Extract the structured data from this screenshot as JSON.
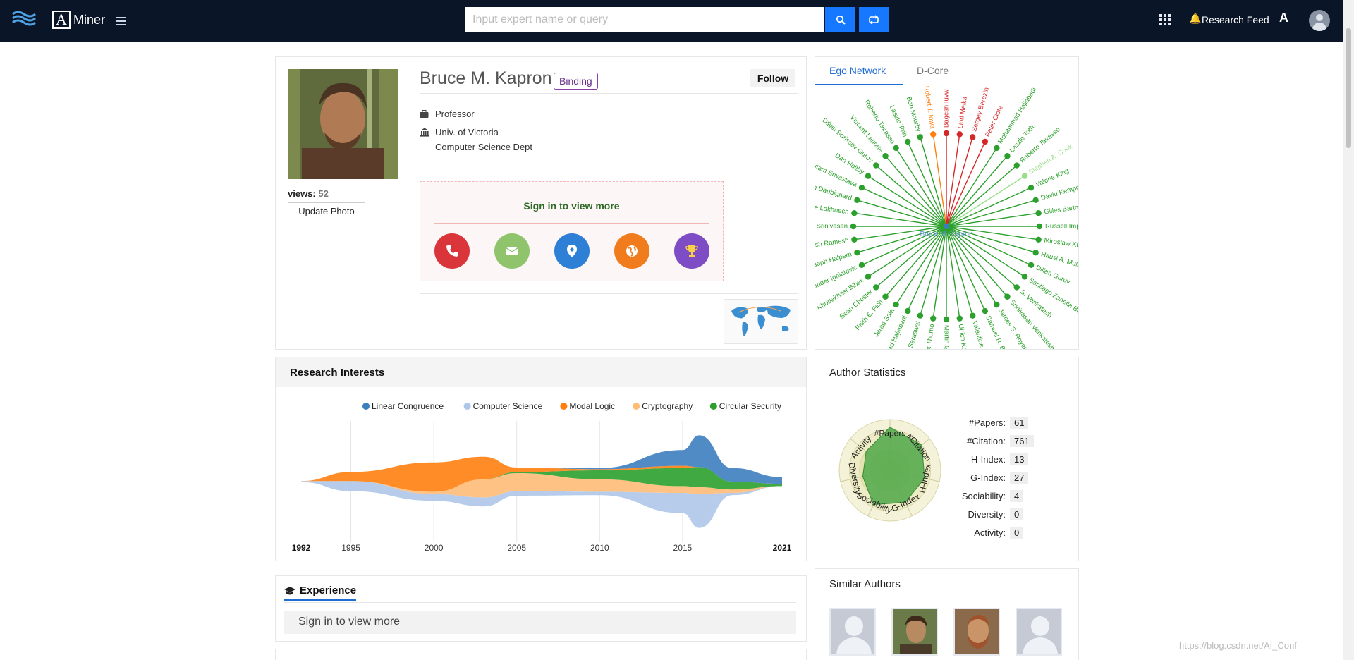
{
  "header": {
    "brand": "Miner",
    "brand_letter": "A",
    "search_placeholder": "Input expert name or query",
    "research_feed": "Research Feed",
    "lang_icon_text": "A"
  },
  "profile": {
    "name": "Bruce M. Kapron",
    "binding": "Binding",
    "follow": "Follow",
    "views_label": "views:",
    "views_count": "52",
    "update_photo": "Update Photo",
    "position": "Professor",
    "affiliation_1": "Univ. of Victoria",
    "affiliation_2": "Computer Science Dept",
    "signin_text": "Sign in to view more",
    "contact_icons": [
      {
        "name": "phone-icon",
        "color": "#d9353b"
      },
      {
        "name": "email-icon",
        "color": "#8fc46d"
      },
      {
        "name": "location-icon",
        "color": "#2e7fd6"
      },
      {
        "name": "homepage-icon",
        "color": "#f07c1e"
      },
      {
        "name": "award-icon",
        "color": "#7e4cc4"
      }
    ]
  },
  "ego": {
    "tab_active": "Ego Network",
    "tab_inactive": "D-Core",
    "center": "Bruce M. Kapron",
    "nodes": [
      {
        "label": "Bagesh Iuvw",
        "color": "#d62728"
      },
      {
        "label": "Liori Malka",
        "color": "#d62728"
      },
      {
        "label": "Sergey Berezin",
        "color": "#d62728"
      },
      {
        "label": "Peter Clote",
        "color": "#d62728"
      },
      {
        "label": "Mohammad Hajiabadi",
        "color": "#2ca02c"
      },
      {
        "label": "Laszlo Toth",
        "color": "#2ca02c"
      },
      {
        "label": "Roberto Tairasso",
        "color": "#2ca02c"
      },
      {
        "label": "Stephen A. Cook",
        "color": "#98df8a"
      },
      {
        "label": "Valerie King",
        "color": "#2ca02c"
      },
      {
        "label": "David Kempe",
        "color": "#2ca02c"
      },
      {
        "label": "Gilles Barthe",
        "color": "#2ca02c"
      },
      {
        "label": "Russell Impagliazzo",
        "color": "#2ca02c"
      },
      {
        "label": "Miroslaw Kutylowski",
        "color": "#2ca02c"
      },
      {
        "label": "Hausi A. Muller",
        "color": "#2ca02c"
      },
      {
        "label": "Dilian Gurov",
        "color": "#2ca02c"
      },
      {
        "label": "Santiago Zanella Beguelin",
        "color": "#2ca02c"
      },
      {
        "label": "S. Venkatesh",
        "color": "#2ca02c"
      },
      {
        "label": "Srinivasan Venkatesh",
        "color": "#2ca02c"
      },
      {
        "label": "James S. Royer",
        "color": "#2ca02c"
      },
      {
        "label": "Samuel R. Buss",
        "color": "#2ca02c"
      },
      {
        "label": "Valentine Kabanets",
        "color": "#2ca02c"
      },
      {
        "label": "Ulrich Kohlenbach",
        "color": "#2ca02c"
      },
      {
        "label": "Martin Gonzalez",
        "color": "#2ca02c"
      },
      {
        "label": "Alex Thomo",
        "color": "#2ca02c"
      },
      {
        "label": "Vishal Saraswat",
        "color": "#2ca02c"
      },
      {
        "label": "Mohammad Hajiabadi",
        "color": "#2ca02c"
      },
      {
        "label": "Jerad Sala",
        "color": "#2ca02c"
      },
      {
        "label": "Faith E. Fich",
        "color": "#2ca02c"
      },
      {
        "label": "Sean Chester",
        "color": "#2ca02c"
      },
      {
        "label": "Khodakhast Bibak",
        "color": "#2ca02c"
      },
      {
        "label": "Aleksandar Ignjatovic",
        "color": "#2ca02c"
      },
      {
        "label": "Joseph Halpern",
        "color": "#2ca02c"
      },
      {
        "label": "Venkatesh Ramesh",
        "color": "#2ca02c"
      },
      {
        "label": "Rajesh Srinivasan",
        "color": "#2ca02c"
      },
      {
        "label": "Yassine Lakhnech",
        "color": "#2ca02c"
      },
      {
        "label": "Simon Daubignard",
        "color": "#2ca02c"
      },
      {
        "label": "Gautam Srivastava",
        "color": "#2ca02c"
      },
      {
        "label": "Dan Hoitby",
        "color": "#2ca02c"
      },
      {
        "label": "Dilian Borissov Gurov",
        "color": "#2ca02c"
      },
      {
        "label": "Vincent Laporte",
        "color": "#2ca02c"
      },
      {
        "label": "Roberto Tairasso",
        "color": "#2ca02c"
      },
      {
        "label": "Laszlo Toth",
        "color": "#2ca02c"
      },
      {
        "label": "Ben Moorby",
        "color": "#2ca02c"
      },
      {
        "label": "Robert T. Iowa",
        "color": "#ff7f0e"
      }
    ]
  },
  "research_interests": {
    "title": "Research Interests",
    "legend": [
      {
        "name": "Linear Congruence",
        "color": "#3d7ebf"
      },
      {
        "name": "Computer Science",
        "color": "#aec7e8"
      },
      {
        "name": "Modal Logic",
        "color": "#ff7f0e"
      },
      {
        "name": "Cryptography",
        "color": "#ffbb78"
      },
      {
        "name": "Circular Security",
        "color": "#2ca02c"
      }
    ],
    "axis_start": "1992",
    "axis_end": "2021",
    "ticks": [
      "1995",
      "2000",
      "2005",
      "2010",
      "2015"
    ]
  },
  "chart_data": {
    "type": "area",
    "title": "Research Interests",
    "xlabel": "",
    "ylabel": "",
    "x": [
      1992,
      1995,
      2000,
      2003,
      2005,
      2010,
      2015,
      2016,
      2018,
      2021
    ],
    "xlim": [
      1992,
      2021
    ],
    "series": [
      {
        "name": "Linear Congruence",
        "values": [
          0,
          0,
          0,
          0,
          0,
          0.1,
          1.4,
          2.8,
          1.2,
          0.6
        ]
      },
      {
        "name": "Computer Science",
        "values": [
          0.1,
          0.9,
          0.6,
          0.8,
          0.4,
          0.3,
          1.8,
          3.0,
          0.2,
          0
        ]
      },
      {
        "name": "Modal Logic",
        "values": [
          0,
          0.8,
          2.6,
          2.0,
          0.4,
          0.1,
          0.2,
          0,
          0,
          0
        ]
      },
      {
        "name": "Cryptography",
        "values": [
          0,
          0,
          0.2,
          1.6,
          1.6,
          1.1,
          0.6,
          0.6,
          0.3,
          0
        ]
      },
      {
        "name": "Circular Security",
        "values": [
          0,
          0,
          0,
          0,
          0.1,
          0.8,
          1.6,
          1.8,
          0.7,
          0.2
        ]
      }
    ]
  },
  "stats": {
    "title": "Author Statistics",
    "rows": [
      {
        "label": "#Papers:",
        "value": "61"
      },
      {
        "label": "#Citation:",
        "value": "761"
      },
      {
        "label": "H-Index:",
        "value": "13"
      },
      {
        "label": "G-Index:",
        "value": "27"
      },
      {
        "label": "Sociability:",
        "value": "4"
      },
      {
        "label": "Diversity:",
        "value": "0"
      },
      {
        "label": "Activity:",
        "value": "0"
      }
    ],
    "radar_axes": [
      "#Papers",
      "#Citation",
      "H-Index",
      "G-Index",
      "Sociability",
      "Diversity",
      "Activity"
    ],
    "radar_values": [
      0.85,
      0.8,
      0.7,
      0.7,
      0.75,
      0.55,
      0.6
    ]
  },
  "experience": {
    "title": "Experience",
    "signin_text": "Sign in to view more"
  },
  "similar": {
    "title": "Similar Authors"
  },
  "watermark": "https://blog.csdn.net/AI_Conf"
}
